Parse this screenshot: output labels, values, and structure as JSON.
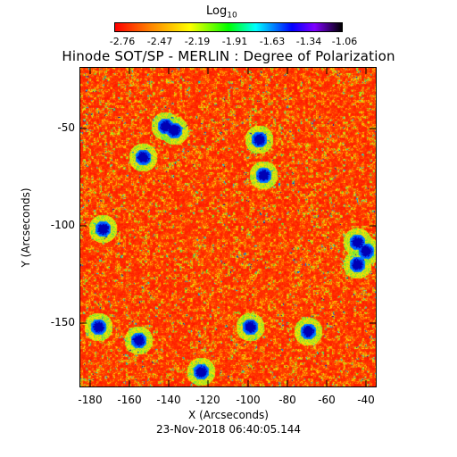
{
  "colorbar": {
    "label_main": "Log",
    "label_sub": "10",
    "ticks": [
      "-2.76",
      "-2.47",
      "-2.19",
      "-1.91",
      "-1.63",
      "-1.34",
      "-1.06"
    ]
  },
  "title": "Hinode SOT/SP - MERLIN : Degree of Polarization",
  "axes": {
    "xlabel": "X (Arcseconds)",
    "ylabel": "Y (Arcseconds)",
    "xticks": [
      "-180",
      "-160",
      "-140",
      "-120",
      "-100",
      "-80",
      "-60",
      "-40"
    ],
    "yticks": [
      "-50",
      "-100",
      "-150"
    ]
  },
  "timestamp": "23-Nov-2018 06:40:05.144",
  "colors": {
    "dominant": "#ff4000",
    "secondary": "#ffd000",
    "patch_green": "#20e040",
    "patch_blue": "#0040ff"
  }
}
